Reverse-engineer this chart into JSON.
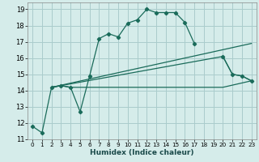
{
  "bg_color": "#d5ecea",
  "grid_color": "#aacccc",
  "line_color": "#1a6b5a",
  "xlabel": "Humidex (Indice chaleur)",
  "xlim": [
    -0.5,
    23.5
  ],
  "ylim": [
    11,
    19.4
  ],
  "xticks": [
    0,
    1,
    2,
    3,
    4,
    5,
    6,
    7,
    8,
    9,
    10,
    11,
    12,
    13,
    14,
    15,
    16,
    17,
    18,
    19,
    20,
    21,
    22,
    23
  ],
  "yticks": [
    11,
    12,
    13,
    14,
    15,
    16,
    17,
    18,
    19
  ],
  "line_main": {
    "x": [
      0,
      1,
      2,
      3,
      4,
      5,
      6,
      7,
      8,
      9,
      10,
      11,
      12,
      13,
      14,
      15,
      16,
      17,
      20,
      21,
      22,
      23
    ],
    "y": [
      11.8,
      11.4,
      14.2,
      14.3,
      14.2,
      12.7,
      14.9,
      17.2,
      17.5,
      17.3,
      18.15,
      18.35,
      19.0,
      18.8,
      18.8,
      18.8,
      18.2,
      16.9,
      16.1,
      15.0,
      14.9,
      14.6
    ]
  },
  "line_flat": {
    "x": [
      2,
      3,
      4,
      5,
      6,
      7,
      8,
      9,
      10,
      11,
      12,
      13,
      14,
      15,
      16,
      17,
      18,
      19,
      20,
      23
    ],
    "y": [
      14.2,
      14.3,
      14.2,
      14.2,
      14.2,
      14.2,
      14.2,
      14.2,
      14.2,
      14.2,
      14.2,
      14.2,
      14.2,
      14.2,
      14.2,
      14.2,
      14.2,
      14.2,
      14.2,
      14.6
    ]
  },
  "line_diag1": {
    "x": [
      2,
      23
    ],
    "y": [
      14.2,
      16.9
    ]
  },
  "line_diag2": {
    "x": [
      2,
      20,
      21,
      22,
      23
    ],
    "y": [
      14.2,
      16.1,
      15.0,
      14.9,
      14.6
    ]
  }
}
